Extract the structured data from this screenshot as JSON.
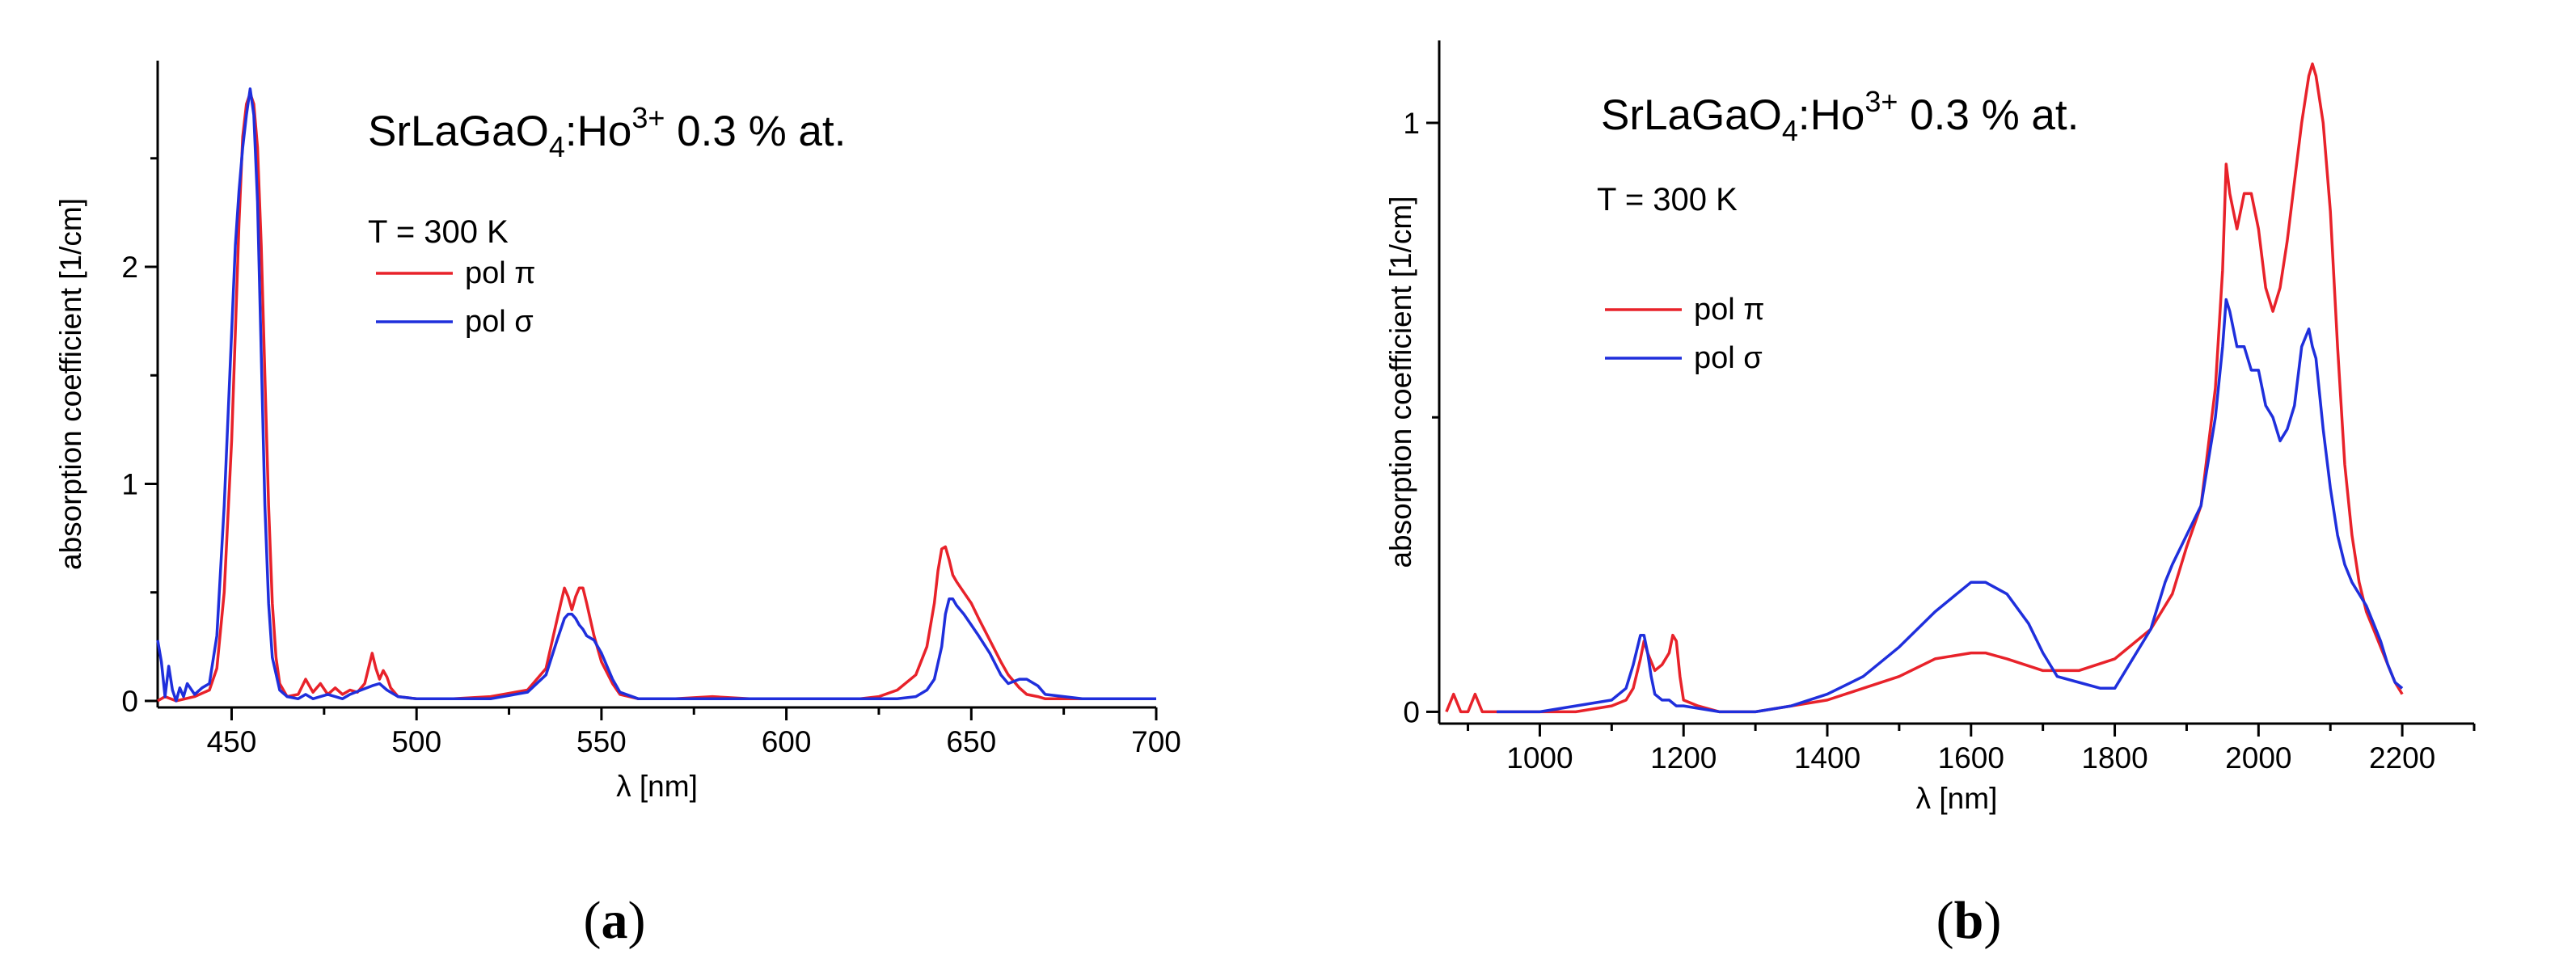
{
  "colors": {
    "pi": "#e8222a",
    "sigma": "#1f2fdc",
    "axis": "#000000"
  },
  "panels": [
    {
      "label_open": "(",
      "label_letter": "a",
      "label_close": ")"
    },
    {
      "label_open": "(",
      "label_letter": "b",
      "label_close": ")"
    }
  ],
  "chart_data": [
    {
      "type": "line",
      "title_main": "SrLaGaO",
      "title_sub": "4",
      "title_mid": ":Ho",
      "title_sup": "3+",
      "title_end": " 0.3 % at.",
      "temperature": "T = 300 K",
      "xlabel": "λ [nm]",
      "ylabel": "absorption coefficient [1/cm]",
      "xlim": [
        430,
        700
      ],
      "ylim": [
        -0.03,
        2.95
      ],
      "xticks": [
        450,
        500,
        550,
        600,
        650,
        700
      ],
      "xtick_labels": [
        "450",
        "500",
        "550",
        "600",
        "650",
        "700"
      ],
      "yticks": [
        0,
        1,
        2
      ],
      "ytick_labels": [
        "0",
        "1",
        "2"
      ],
      "legend": [
        "pol π",
        "pol σ"
      ],
      "series": [
        {
          "name": "pol π",
          "color": "pi",
          "x": [
            430,
            432,
            435,
            440,
            444,
            446,
            448,
            450,
            451,
            452,
            453,
            454,
            455,
            456,
            457,
            458,
            459,
            460,
            461,
            462,
            463,
            465,
            468,
            470,
            472,
            474,
            476,
            478,
            480,
            482,
            484,
            486,
            487,
            488,
            489,
            490,
            491,
            492,
            493,
            495,
            500,
            510,
            520,
            530,
            535,
            537,
            539,
            540,
            541,
            542,
            543,
            544,
            545,
            546,
            548,
            550,
            553,
            555,
            560,
            570,
            580,
            590,
            600,
            610,
            620,
            625,
            630,
            635,
            638,
            640,
            641,
            642,
            643,
            644,
            645,
            646,
            648,
            650,
            652,
            655,
            658,
            660,
            663,
            665,
            668,
            670,
            680,
            690,
            700
          ],
          "y": [
            0.0,
            0.02,
            0.0,
            0.02,
            0.05,
            0.15,
            0.5,
            1.2,
            1.7,
            2.2,
            2.6,
            2.75,
            2.8,
            2.75,
            2.55,
            2.1,
            1.5,
            0.9,
            0.45,
            0.2,
            0.08,
            0.02,
            0.03,
            0.1,
            0.04,
            0.08,
            0.03,
            0.06,
            0.03,
            0.05,
            0.04,
            0.08,
            0.15,
            0.22,
            0.15,
            0.1,
            0.14,
            0.11,
            0.06,
            0.02,
            0.01,
            0.01,
            0.02,
            0.05,
            0.15,
            0.3,
            0.45,
            0.52,
            0.48,
            0.42,
            0.48,
            0.52,
            0.52,
            0.45,
            0.3,
            0.18,
            0.08,
            0.03,
            0.01,
            0.01,
            0.02,
            0.01,
            0.01,
            0.01,
            0.01,
            0.02,
            0.05,
            0.12,
            0.25,
            0.45,
            0.6,
            0.7,
            0.71,
            0.65,
            0.58,
            0.55,
            0.5,
            0.45,
            0.38,
            0.28,
            0.18,
            0.12,
            0.06,
            0.03,
            0.02,
            0.01,
            0.01,
            0.01,
            0.01
          ]
        },
        {
          "name": "pol σ",
          "color": "sigma",
          "x": [
            430,
            431,
            432,
            433,
            434,
            435,
            436,
            437,
            438,
            440,
            442,
            444,
            446,
            448,
            450,
            451,
            452,
            453,
            454,
            455,
            456,
            457,
            458,
            459,
            460,
            461,
            463,
            465,
            468,
            470,
            472,
            474,
            476,
            478,
            480,
            482,
            485,
            488,
            490,
            492,
            495,
            500,
            510,
            520,
            530,
            535,
            538,
            540,
            541,
            542,
            543,
            544,
            545,
            546,
            548,
            550,
            553,
            555,
            560,
            570,
            580,
            590,
            600,
            610,
            620,
            630,
            635,
            638,
            640,
            642,
            643,
            644,
            645,
            646,
            648,
            650,
            652,
            655,
            658,
            660,
            663,
            665,
            668,
            670,
            680,
            690,
            700
          ],
          "y": [
            0.28,
            0.18,
            0.02,
            0.16,
            0.05,
            0.0,
            0.06,
            0.02,
            0.08,
            0.03,
            0.06,
            0.08,
            0.3,
            0.9,
            1.7,
            2.1,
            2.35,
            2.55,
            2.7,
            2.82,
            2.7,
            2.3,
            1.6,
            0.9,
            0.45,
            0.2,
            0.05,
            0.02,
            0.01,
            0.03,
            0.01,
            0.02,
            0.03,
            0.02,
            0.01,
            0.03,
            0.05,
            0.07,
            0.08,
            0.05,
            0.02,
            0.01,
            0.01,
            0.01,
            0.04,
            0.12,
            0.28,
            0.38,
            0.4,
            0.4,
            0.38,
            0.35,
            0.33,
            0.3,
            0.28,
            0.22,
            0.1,
            0.04,
            0.01,
            0.01,
            0.01,
            0.01,
            0.01,
            0.01,
            0.01,
            0.01,
            0.02,
            0.05,
            0.1,
            0.25,
            0.4,
            0.47,
            0.47,
            0.44,
            0.4,
            0.35,
            0.3,
            0.22,
            0.12,
            0.08,
            0.1,
            0.1,
            0.07,
            0.03,
            0.01,
            0.01,
            0.01
          ]
        }
      ]
    },
    {
      "type": "line",
      "title_main": "SrLaGaO",
      "title_sub": "4",
      "title_mid": ":Ho",
      "title_sup": "3+",
      "title_end": " 0.3 % at.",
      "temperature": "T = 300 K",
      "xlabel": "λ [nm]",
      "ylabel": "absorption coefficient [1/cm]",
      "xlim": [
        860,
        2300
      ],
      "ylim": [
        -0.02,
        1.14
      ],
      "xticks": [
        1000,
        1200,
        1400,
        1600,
        1800,
        2000,
        2200
      ],
      "xtick_labels": [
        "1000",
        "1200",
        "1400",
        "1600",
        "1800",
        "2000",
        "2200"
      ],
      "yticks": [
        0,
        1
      ],
      "ytick_labels": [
        "0",
        "1"
      ],
      "legend": [
        "pol π",
        "pol σ"
      ],
      "series": [
        {
          "name": "pol π",
          "color": "pi",
          "x": [
            870,
            880,
            890,
            900,
            910,
            920,
            930,
            950,
            1000,
            1050,
            1100,
            1120,
            1130,
            1140,
            1145,
            1150,
            1160,
            1170,
            1180,
            1185,
            1190,
            1195,
            1200,
            1220,
            1250,
            1300,
            1350,
            1400,
            1450,
            1500,
            1550,
            1600,
            1620,
            1650,
            1700,
            1750,
            1800,
            1850,
            1880,
            1900,
            1920,
            1940,
            1950,
            1955,
            1960,
            1970,
            1980,
            1990,
            2000,
            2010,
            2020,
            2030,
            2040,
            2050,
            2060,
            2070,
            2075,
            2080,
            2090,
            2100,
            2110,
            2120,
            2130,
            2140,
            2150,
            2160,
            2170,
            2180,
            2190,
            2200
          ],
          "y": [
            0.0,
            0.03,
            0.0,
            0.0,
            0.03,
            0.0,
            0.0,
            0.0,
            0.0,
            0.0,
            0.01,
            0.02,
            0.04,
            0.09,
            0.12,
            0.1,
            0.07,
            0.08,
            0.1,
            0.13,
            0.12,
            0.06,
            0.02,
            0.01,
            0.0,
            0.0,
            0.01,
            0.02,
            0.04,
            0.06,
            0.09,
            0.1,
            0.1,
            0.09,
            0.07,
            0.07,
            0.09,
            0.14,
            0.2,
            0.28,
            0.35,
            0.55,
            0.75,
            0.93,
            0.88,
            0.82,
            0.88,
            0.88,
            0.82,
            0.72,
            0.68,
            0.72,
            0.8,
            0.9,
            1.0,
            1.08,
            1.1,
            1.08,
            1.0,
            0.85,
            0.62,
            0.42,
            0.3,
            0.22,
            0.17,
            0.14,
            0.11,
            0.08,
            0.05,
            0.03
          ]
        },
        {
          "name": "pol σ",
          "color": "sigma",
          "x": [
            940,
            950,
            1000,
            1050,
            1100,
            1120,
            1130,
            1140,
            1145,
            1150,
            1155,
            1160,
            1170,
            1180,
            1190,
            1200,
            1250,
            1300,
            1350,
            1400,
            1450,
            1500,
            1550,
            1580,
            1600,
            1620,
            1650,
            1680,
            1700,
            1720,
            1750,
            1780,
            1800,
            1820,
            1850,
            1870,
            1880,
            1900,
            1920,
            1940,
            1950,
            1955,
            1960,
            1970,
            1980,
            1990,
            2000,
            2010,
            2020,
            2030,
            2040,
            2050,
            2060,
            2070,
            2075,
            2080,
            2090,
            2100,
            2110,
            2120,
            2130,
            2140,
            2150,
            2160,
            2170,
            2180,
            2190,
            2200
          ],
          "y": [
            0.0,
            0.0,
            0.0,
            0.01,
            0.02,
            0.04,
            0.08,
            0.13,
            0.13,
            0.1,
            0.06,
            0.03,
            0.02,
            0.02,
            0.01,
            0.01,
            0.0,
            0.0,
            0.01,
            0.03,
            0.06,
            0.11,
            0.17,
            0.2,
            0.22,
            0.22,
            0.2,
            0.15,
            0.1,
            0.06,
            0.05,
            0.04,
            0.04,
            0.08,
            0.14,
            0.22,
            0.25,
            0.3,
            0.35,
            0.5,
            0.62,
            0.7,
            0.68,
            0.62,
            0.62,
            0.58,
            0.58,
            0.52,
            0.5,
            0.46,
            0.48,
            0.52,
            0.62,
            0.65,
            0.62,
            0.6,
            0.48,
            0.38,
            0.3,
            0.25,
            0.22,
            0.2,
            0.18,
            0.15,
            0.12,
            0.08,
            0.05,
            0.04
          ]
        }
      ]
    }
  ]
}
